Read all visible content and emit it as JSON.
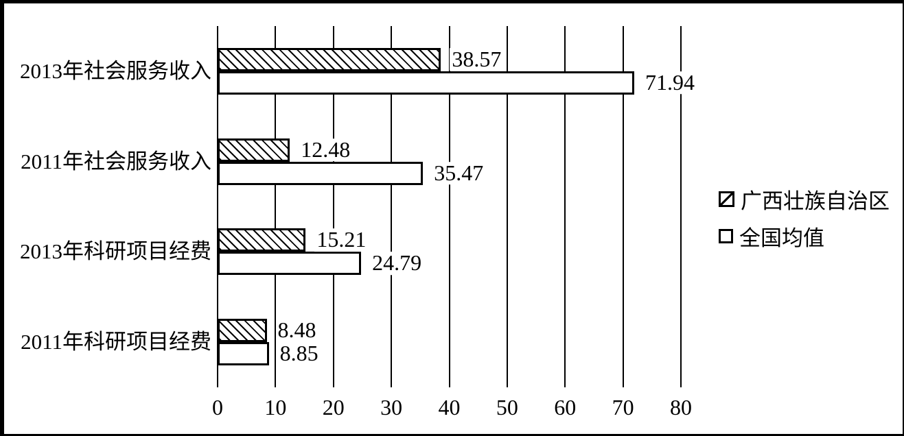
{
  "colors": {
    "foreground": "#000000",
    "background": "#ffffff"
  },
  "chart_data": {
    "type": "bar",
    "orientation": "horizontal",
    "title": "",
    "xlabel": "",
    "ylabel": "",
    "categories": [
      "2013年社会服务收入",
      "2011年社会服务收入",
      "2013年科研项目经费",
      "2011年科研项目经费"
    ],
    "series": [
      {
        "name": "广西壮族自治区",
        "style": "hatched",
        "values": [
          38.57,
          12.48,
          15.21,
          8.48
        ]
      },
      {
        "name": "全国均值",
        "style": "plain",
        "values": [
          71.94,
          35.47,
          24.79,
          8.85
        ]
      }
    ],
    "xlim": [
      0,
      80
    ],
    "x_ticks": [
      0,
      10,
      20,
      30,
      40,
      50,
      60,
      70,
      80
    ],
    "x_tick_labels": [
      "0",
      "10",
      "20",
      "30",
      "40",
      "50",
      "60",
      "70",
      "80"
    ],
    "grid": true,
    "gridlines": "vertical",
    "legend_position": "right",
    "value_label_decimals": 2
  }
}
